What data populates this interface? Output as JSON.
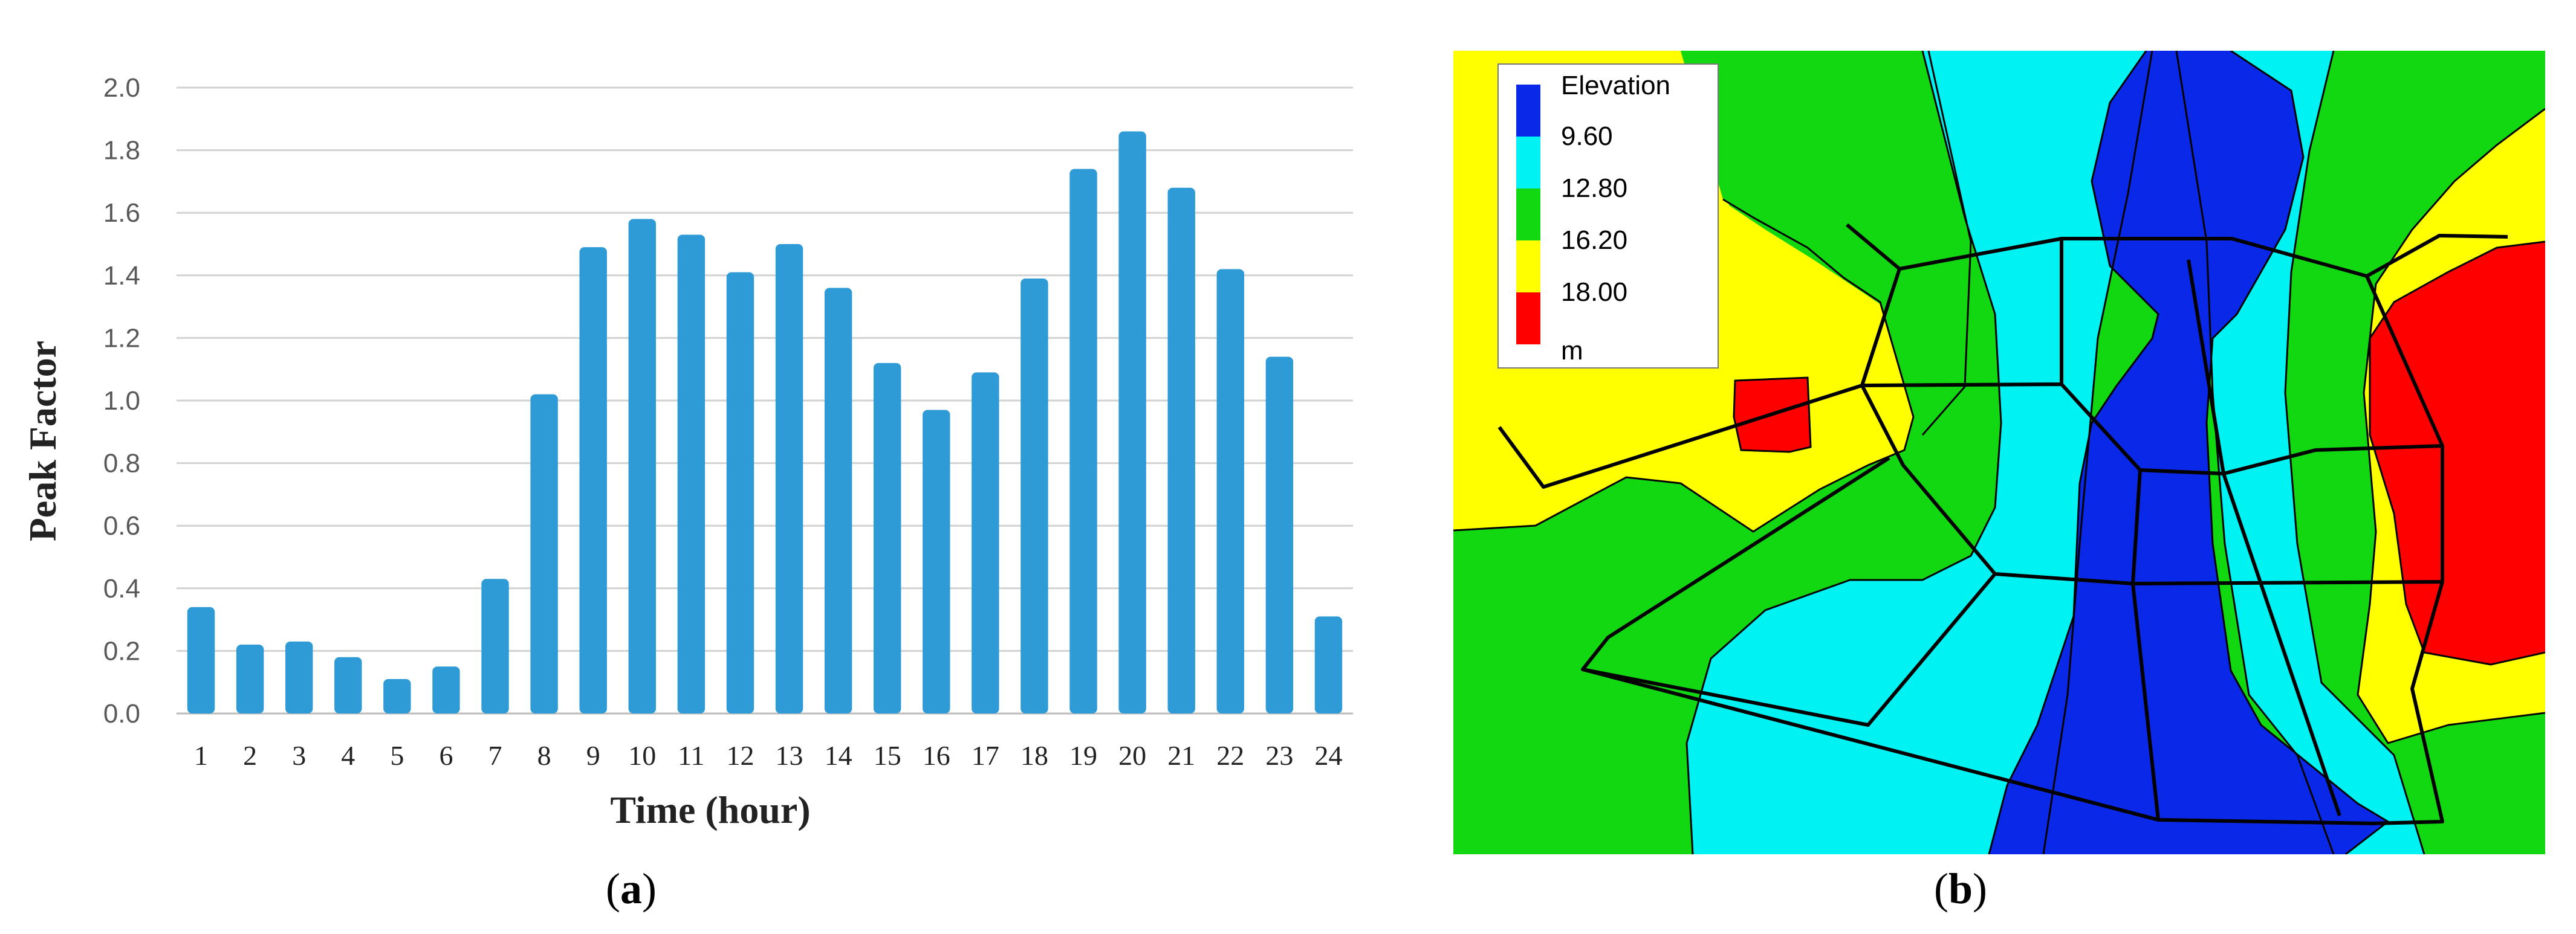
{
  "chart_data": {
    "type": "bar",
    "title": "",
    "xlabel": "Time (hour)",
    "ylabel": "Peak Factor",
    "ylim": [
      0,
      2.0
    ],
    "yticks": [
      "0.0",
      "0.2",
      "0.4",
      "0.6",
      "0.8",
      "1.0",
      "1.2",
      "1.4",
      "1.6",
      "1.8",
      "2.0"
    ],
    "categories": [
      "1",
      "2",
      "3",
      "4",
      "5",
      "6",
      "7",
      "8",
      "9",
      "10",
      "11",
      "12",
      "13",
      "14",
      "15",
      "16",
      "17",
      "18",
      "19",
      "20",
      "21",
      "22",
      "23",
      "24"
    ],
    "values": [
      0.34,
      0.22,
      0.23,
      0.18,
      0.11,
      0.15,
      0.43,
      1.02,
      1.49,
      1.58,
      1.53,
      1.41,
      1.5,
      1.36,
      1.12,
      0.97,
      1.09,
      1.39,
      1.74,
      1.86,
      1.68,
      1.42,
      1.14,
      0.31
    ],
    "grid": true,
    "bar_color": "#2E9BD6"
  },
  "map": {
    "legend_title": "Elevation",
    "legend_unit": "m",
    "legend": [
      {
        "label": "9.60",
        "color": "#0A28E8"
      },
      {
        "label": "12.80",
        "color": "#00F2F2"
      },
      {
        "label": "16.20",
        "color": "#12D812"
      },
      {
        "label": "18.00",
        "color": "#FFFF00"
      },
      {
        "label": "",
        "color": "#FF0000"
      }
    ]
  },
  "captions": {
    "a": "a",
    "b": "b"
  }
}
